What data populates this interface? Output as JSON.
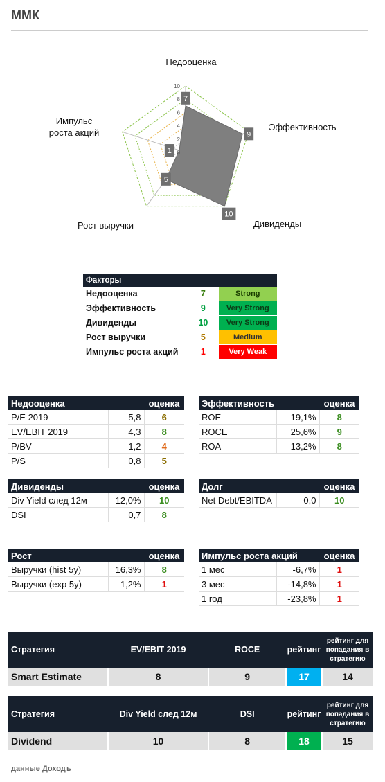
{
  "title": "ММК",
  "radar": {
    "axes": [
      "Недооценка",
      "Эффективность",
      "Дивиденды",
      "Рост выручки",
      "Импульс роста акций"
    ],
    "labels": [
      "Недооценка",
      "Эффективность",
      "Дивиденды",
      "Рост выручки",
      "Импульс\nроста акций"
    ],
    "values": [
      7,
      9,
      10,
      5,
      1
    ],
    "max": 10,
    "ticks": [
      "0",
      "2",
      "4",
      "6",
      "8",
      "10"
    ],
    "fill_color": "#7f7f7f",
    "ring_colors": [
      "#c0c0c0",
      "#c0c0c0",
      "#e9b44c",
      "#e9b44c",
      "#8bc34a",
      "#8bc34a"
    ]
  },
  "factors": {
    "header": "Факторы",
    "rows": [
      {
        "name": "Недооценка",
        "score": "7",
        "rating": "Strong",
        "color": "#92d050",
        "score_color": "#3a7f10",
        "text_color": "#1a3d00"
      },
      {
        "name": "Эффективность",
        "score": "9",
        "rating": "Very Strong",
        "color": "#00b050",
        "score_color": "#00a040",
        "text_color": "#0b3d16"
      },
      {
        "name": "Дивиденды",
        "score": "10",
        "rating": "Very Strong",
        "color": "#00b050",
        "score_color": "#00a040",
        "text_color": "#0b3d16"
      },
      {
        "name": "Рост выручки",
        "score": "5",
        "rating": "Medium",
        "color": "#ffc000",
        "score_color": "#b07a00",
        "text_color": "#333333"
      },
      {
        "name": "Импульс роста акций",
        "score": "1",
        "rating": "Very Weak",
        "color": "#ff0000",
        "score_color": "#ff0000",
        "text_color": "#ffffff"
      }
    ]
  },
  "tables": {
    "undervaluation": {
      "title": "Недооценка",
      "score_header": "оценка",
      "rows": [
        {
          "name": "P/E 2019",
          "value": "5,8",
          "score": "6",
          "cls": "c-gold"
        },
        {
          "name": "EV/EBIT 2019",
          "value": "4,3",
          "score": "8",
          "cls": "c-green"
        },
        {
          "name": "P/BV",
          "value": "1,2",
          "score": "4",
          "cls": "c-orange"
        },
        {
          "name": "P/S",
          "value": "0,8",
          "score": "5",
          "cls": "c-gold"
        }
      ]
    },
    "efficiency": {
      "title": "Эффективность",
      "score_header": "оценка",
      "rows": [
        {
          "name": "ROE",
          "value": "19,1%",
          "score": "8",
          "cls": "c-green"
        },
        {
          "name": "ROCE",
          "value": "25,6%",
          "score": "9",
          "cls": "c-green"
        },
        {
          "name": "ROA",
          "value": "13,2%",
          "score": "8",
          "cls": "c-green"
        }
      ]
    },
    "dividends": {
      "title": "Дивиденды",
      "score_header": "оценка",
      "rows": [
        {
          "name": "Div Yield след 12м",
          "value": "12,0%",
          "score": "10",
          "cls": "c-green"
        },
        {
          "name": "DSI",
          "value": "0,7",
          "score": "8",
          "cls": "c-green"
        }
      ]
    },
    "debt": {
      "title": "Долг",
      "score_header": "оценка",
      "rows": [
        {
          "name": "Net Debt/EBITDA",
          "value": "0,0",
          "score": "10",
          "cls": "c-green"
        }
      ]
    },
    "growth": {
      "title": "Рост",
      "score_header": "оценка",
      "rows": [
        {
          "name": "Выручки (hist 5y)",
          "value": "16,3%",
          "score": "8",
          "cls": "c-green"
        },
        {
          "name": "Выручки (exp 5y)",
          "value": "1,2%",
          "score": "1",
          "cls": "c-red"
        }
      ]
    },
    "momentum": {
      "title": "Импульс роста акций",
      "score_header": "оценка",
      "rows": [
        {
          "name": "1 мес",
          "value": "-6,7%",
          "score": "1",
          "cls": "c-red"
        },
        {
          "name": "3 мес",
          "value": "-14,8%",
          "score": "1",
          "cls": "c-red"
        },
        {
          "name": "1 год",
          "value": "-23,8%",
          "score": "1",
          "cls": "c-red"
        }
      ]
    }
  },
  "strategies": [
    {
      "h_strategy": "Стратегия",
      "h_m1": "EV/EBIT 2019",
      "h_m2": "ROCE",
      "h_rating": "рейтинг",
      "h_threshold": "рейтинг для попадания в стратегию",
      "name": "Smart Estimate",
      "m1": "8",
      "m2": "9",
      "rating": "17",
      "threshold": "14",
      "rating_color": "#00b0f0"
    },
    {
      "h_strategy": "Стратегия",
      "h_m1": "Div Yield след 12м",
      "h_m2": "DSI",
      "h_rating": "рейтинг",
      "h_threshold": "рейтинг для попадания в стратегию",
      "name": "Dividend",
      "m1": "10",
      "m2": "8",
      "rating": "18",
      "threshold": "15",
      "rating_color": "#00b050"
    }
  ],
  "footer": "данные Доходъ"
}
